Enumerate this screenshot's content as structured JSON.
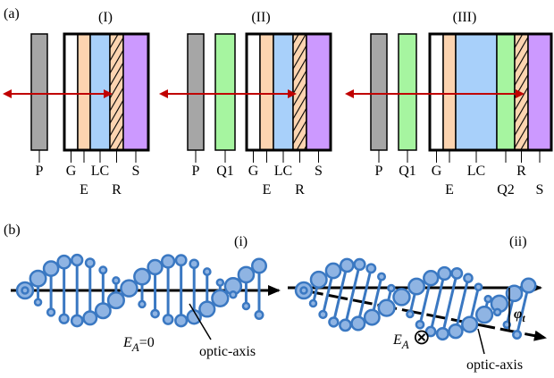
{
  "panel_a": {
    "label": "(a)",
    "configs": [
      {
        "title": "(I)",
        "labels": [
          "P",
          "G",
          "E",
          "LC",
          "R",
          "S"
        ]
      },
      {
        "title": "(II)",
        "labels": [
          "P",
          "Q1",
          "G",
          "E",
          "LC",
          "R",
          "S"
        ]
      },
      {
        "title": "(III)",
        "labels": [
          "P",
          "Q1",
          "G",
          "E",
          "LC",
          "Q2",
          "R",
          "S"
        ]
      }
    ]
  },
  "panel_b": {
    "label": "(b)",
    "parts": [
      {
        "title": "(i)",
        "axis_label": "optic-axis",
        "field": "E",
        "field_sub": "A",
        "field_state": "=0"
      },
      {
        "title": "(ii)",
        "axis_label": "optic-axis",
        "field": "E",
        "field_sub": "A",
        "field_state": "⊗",
        "angle": "φ",
        "angle_sub": "t"
      }
    ]
  }
}
